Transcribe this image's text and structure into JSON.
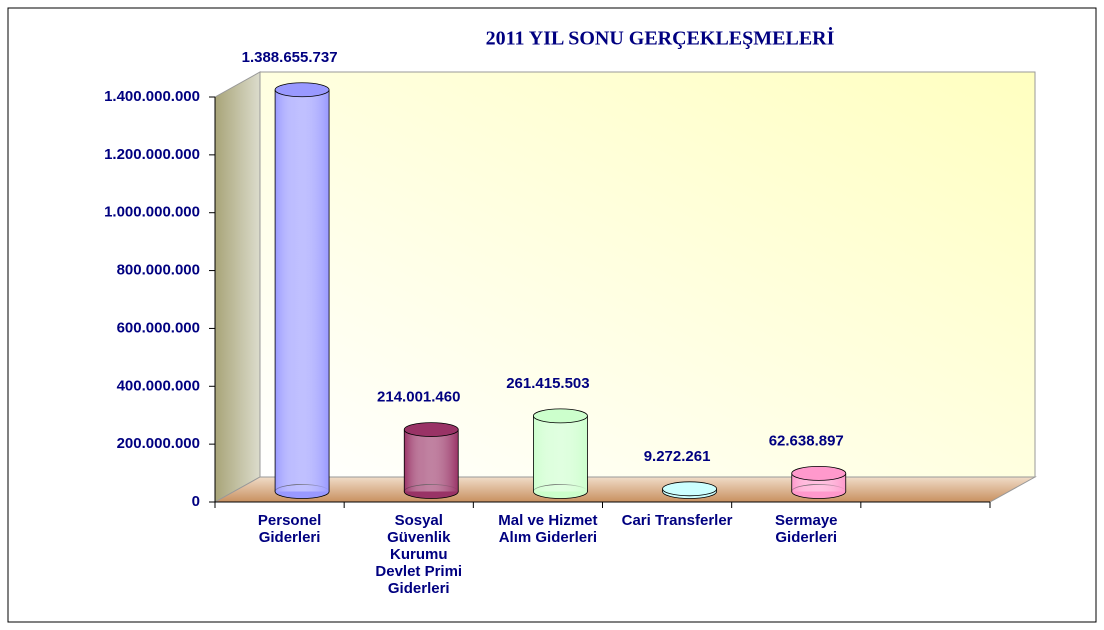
{
  "chart_data": {
    "type": "bar",
    "title": "2011 YIL SONU GERÇEKLEŞMELERİ",
    "categories": [
      "Personel Giderleri",
      "Sosyal Güvenlik Kurumu Devlet Primi Giderleri",
      "Mal ve Hizmet Alım Giderleri",
      "Cari Transferler",
      "Sermaye Giderleri",
      null
    ],
    "values": [
      1388655737,
      214001460,
      261415503,
      9272261,
      62638897,
      null
    ],
    "value_labels": [
      "1.388.655.737",
      "214.001.460",
      "261.415.503",
      "9.272.261",
      "62.638.897",
      null
    ],
    "colors": [
      "#9999ff",
      "#993366",
      "#ccffcc",
      "#ccffff",
      "#ff99cc",
      null
    ],
    "ylim": [
      0,
      1400000000
    ],
    "yticks": [
      0,
      {
        "value": 200000000,
        "label": "200.000.000"
      },
      {
        "value": 400000000,
        "label": "400.000.000"
      },
      {
        "value": 600000000,
        "label": "600.000.000"
      },
      {
        "value": 800000000,
        "label": "800.000.000"
      },
      {
        "value": 1000000000,
        "label": "1.000.000.000"
      },
      {
        "value": 1200000000,
        "label": "1.200.000.000"
      },
      {
        "value": 1400000000,
        "label": "1.400.000.000"
      }
    ],
    "grid": false
  }
}
